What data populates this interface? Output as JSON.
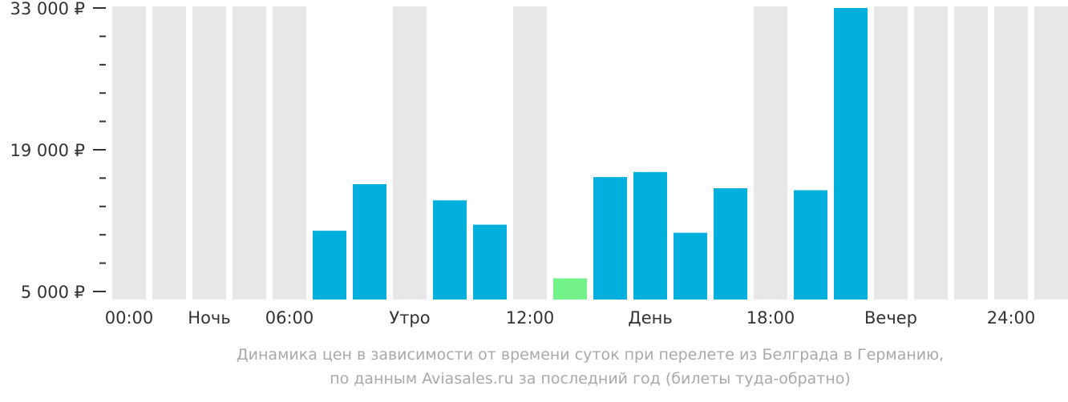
{
  "chart_data": {
    "type": "bar",
    "title": "",
    "xlabel": "",
    "ylabel": "",
    "ylim": [
      5000,
      33000
    ],
    "y_ticks": [
      {
        "value": 5000,
        "label": "5 000 ₽"
      },
      {
        "value": 19000,
        "label": "19 000 ₽"
      },
      {
        "value": 33000,
        "label": "33 000 ₽"
      }
    ],
    "x_tick_labels": [
      {
        "slot": 0,
        "label": "00:00"
      },
      {
        "slot": 2,
        "label": "Ночь"
      },
      {
        "slot": 4,
        "label": "06:00"
      },
      {
        "slot": 7,
        "label": "Утро"
      },
      {
        "slot": 10,
        "label": "12:00"
      },
      {
        "slot": 13,
        "label": "День"
      },
      {
        "slot": 16,
        "label": "18:00"
      },
      {
        "slot": 19,
        "label": "Вечер"
      },
      {
        "slot": 22,
        "label": "24:00"
      }
    ],
    "hours": [
      0,
      1,
      2,
      3,
      4,
      5,
      6,
      7,
      8,
      9,
      10,
      11,
      12,
      13,
      14,
      15,
      16,
      17,
      18,
      19,
      20,
      21,
      22,
      23
    ],
    "values": [
      null,
      null,
      null,
      null,
      null,
      11000,
      15600,
      null,
      14000,
      11600,
      null,
      6300,
      16300,
      16800,
      10800,
      15200,
      null,
      15000,
      33000,
      null,
      null,
      null,
      null,
      null
    ],
    "min_index": 11,
    "grid": true,
    "legend": "none",
    "colors": {
      "bar": "#03afdc",
      "min_bar": "#74f28a",
      "background_column": "#e8e8e8",
      "axis": "#333333",
      "caption": "#a9a9a9"
    }
  },
  "caption": {
    "line1": "Динамика цен в зависимости от времени суток при перелете из Белграда в Германию,",
    "line2": "по данным Aviasales.ru за последний год (билеты туда-обратно)"
  }
}
